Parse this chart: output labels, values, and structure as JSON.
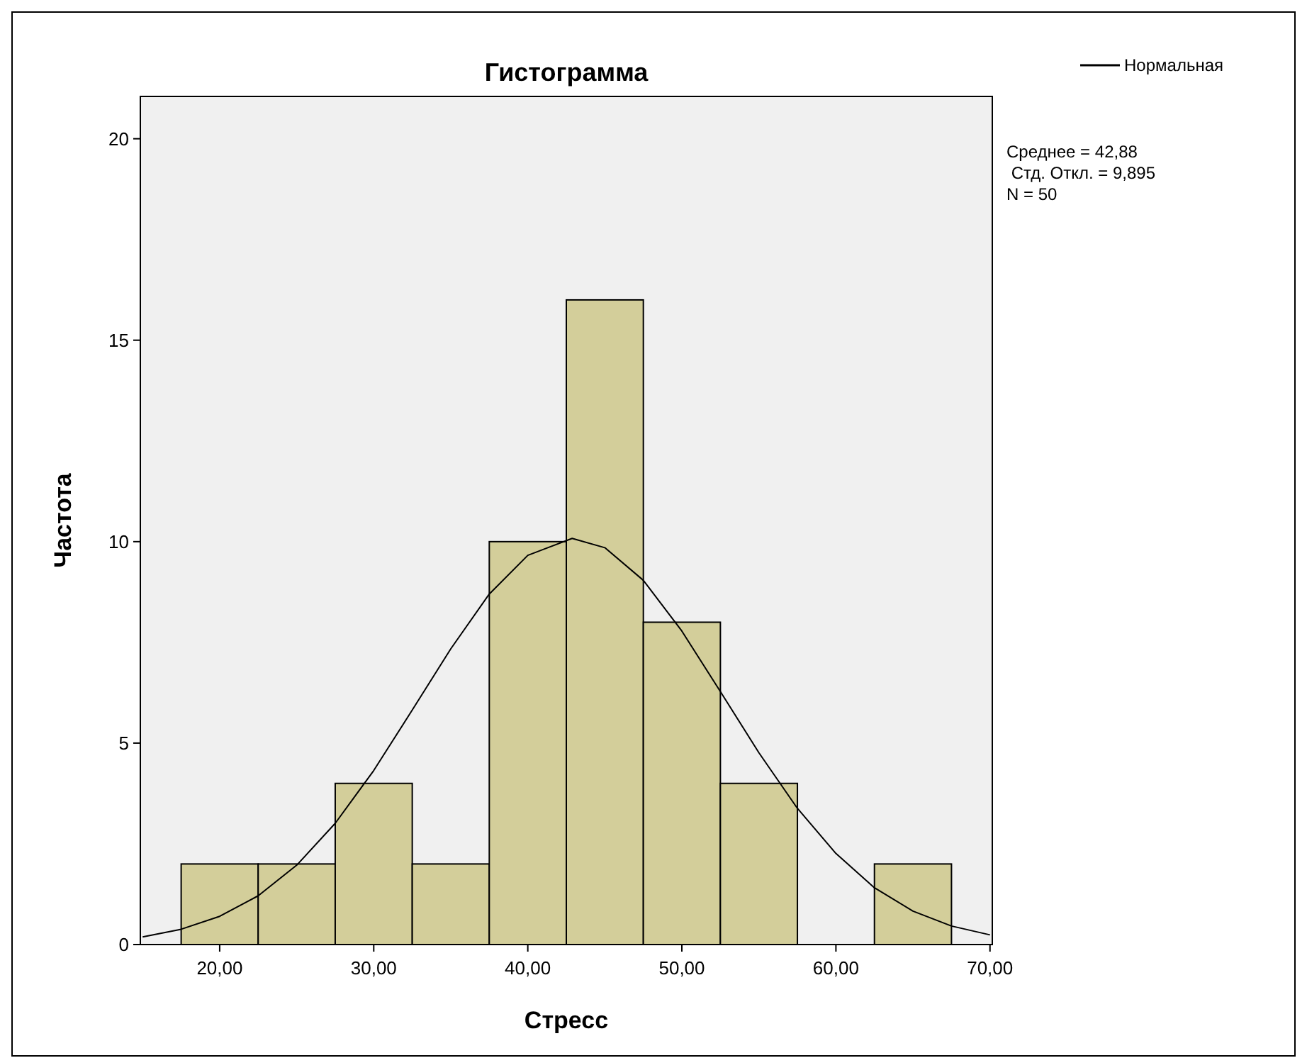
{
  "chart_data": {
    "type": "histogram",
    "title": "Гистограмма",
    "xlabel": "Стресс",
    "ylabel": "Частота",
    "bins": [
      17.5,
      22.5,
      27.5,
      32.5,
      37.5,
      42.5,
      47.5,
      52.5,
      57.5,
      62.5,
      67.5
    ],
    "series": [
      {
        "color": "#d3ce9a",
        "values": [
          2,
          2,
          4,
          2,
          10,
          16,
          8,
          4,
          0,
          2
        ]
      },
      {
        "type": "line",
        "name": "Нормальная",
        "color": "#000000",
        "x": [
          15,
          17.5,
          20,
          22.5,
          25,
          27.5,
          30,
          32.5,
          35,
          37.5,
          40,
          42.88,
          45,
          47.5,
          50,
          52.5,
          55,
          57.5,
          60,
          62.5,
          65,
          67.5,
          70
        ],
        "values": [
          0.19,
          0.38,
          0.7,
          1.21,
          1.97,
          3.01,
          4.32,
          5.82,
          7.34,
          8.7,
          9.66,
          10.08,
          9.85,
          9.04,
          7.78,
          6.28,
          4.76,
          3.38,
          2.26,
          1.41,
          0.83,
          0.46,
          0.24
        ]
      }
    ],
    "xlim": [
      14.85,
      70.15
    ],
    "ylim": [
      0,
      21.05
    ],
    "xticks": [
      {
        "value": 20,
        "label": "20,00"
      },
      {
        "value": 30,
        "label": "30,00"
      },
      {
        "value": 40,
        "label": "40,00"
      },
      {
        "value": 50,
        "label": "50,00"
      },
      {
        "value": 60,
        "label": "60,00"
      },
      {
        "value": 70,
        "label": "70,00"
      }
    ],
    "yticks": [
      0,
      5,
      10,
      15,
      20
    ],
    "legend": "top right",
    "annotations": [
      "Среднее = 42,88",
      " Стд. Откл. = 9,895",
      "N = 50"
    ]
  }
}
